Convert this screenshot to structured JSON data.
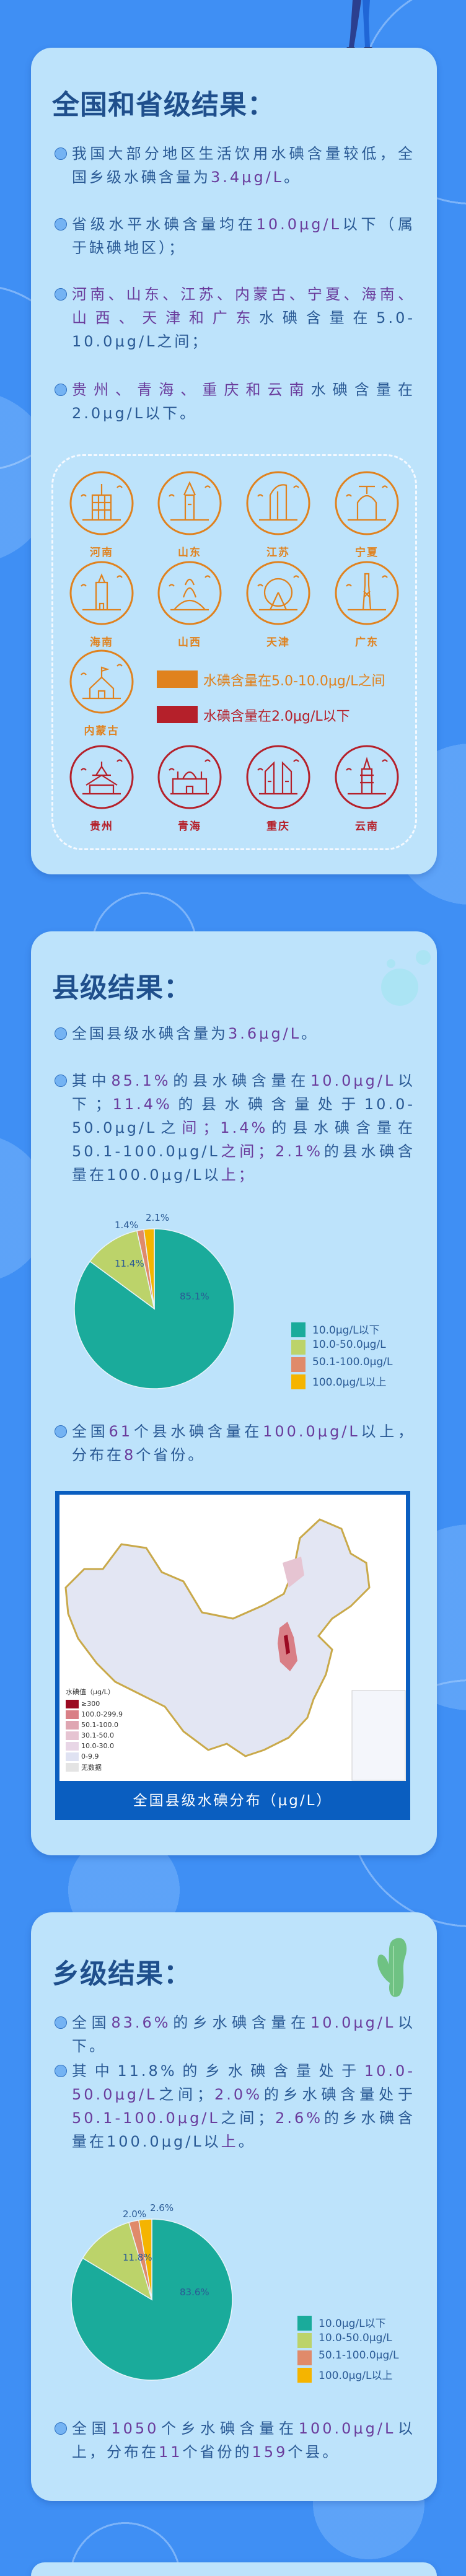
{
  "colors": {
    "background": "#3f8ff4",
    "card": "#bde3fb",
    "title": "#1f4f8c",
    "text": "#2a5a95",
    "highlight": "#6a3c9c",
    "orange": "#e0821e",
    "red": "#b5202a"
  },
  "national": {
    "title": "全国和省级结果：",
    "bullets": [
      [
        {
          "t": "我国大部分地区生活饮用水碘含量较低，全国乡级水碘含量为"
        },
        {
          "t": "3.4μg/L",
          "h": true
        },
        {
          "t": "。"
        }
      ],
      [
        {
          "t": "省级水平水碘含量均在"
        },
        {
          "t": "10.0μg/L",
          "h": true
        },
        {
          "t": "以下（属于缺碘地区）；"
        }
      ],
      [
        {
          "t": "河南、山东、江苏、内蒙古、宁夏、海南、山西、天津和广东",
          "h": true
        },
        {
          "t": "水碘含量在5.0-10.0μg/L之间；"
        }
      ],
      [
        {
          "t": "贵州、青海、重庆和云南",
          "h": true
        },
        {
          "t": "水碘含量在2.0μg/L以下。"
        }
      ]
    ],
    "orange_provinces": [
      {
        "name": "河南",
        "icon": "henan-landmark-icon"
      },
      {
        "name": "山东",
        "icon": "shandong-landmark-icon"
      },
      {
        "name": "江苏",
        "icon": "jiangsu-landmark-icon"
      },
      {
        "name": "宁夏",
        "icon": "ningxia-landmark-icon"
      },
      {
        "name": "海南",
        "icon": "hainan-landmark-icon"
      },
      {
        "name": "山西",
        "icon": "shanxi-buddha-icon"
      },
      {
        "name": "天津",
        "icon": "tianjin-ferris-wheel-icon"
      },
      {
        "name": "广东",
        "icon": "guangdong-canton-tower-icon"
      },
      {
        "name": "内蒙古",
        "icon": "neimenggu-yurt-icon"
      }
    ],
    "red_provinces": [
      {
        "name": "贵州",
        "icon": "guizhou-pavilion-icon"
      },
      {
        "name": "青海",
        "icon": "qinghai-mosque-icon"
      },
      {
        "name": "重庆",
        "icon": "chongqing-building-icon"
      },
      {
        "name": "云南",
        "icon": "yunnan-pagoda-icon"
      }
    ],
    "legend": {
      "orange": "水碘含量在5.0-10.0μg/L之间",
      "red": "水碘含量在2.0μg/L以下"
    }
  },
  "county": {
    "title": "县级结果：",
    "bullets": [
      [
        {
          "t": "全国县级水碘含量为"
        },
        {
          "t": "3.6μg/L",
          "h": true
        },
        {
          "t": "。"
        }
      ],
      [
        {
          "t": "其中"
        },
        {
          "t": "85.1%",
          "h": true
        },
        {
          "t": "的县水碘含量在"
        },
        {
          "t": "10.0μg/L",
          "h": true
        },
        {
          "t": "以下；"
        },
        {
          "t": "11.4%",
          "h": true
        },
        {
          "t": "的县水碘含量处于10.0-50.0μg/L之"
        },
        {
          "t": "间；",
          "h": true
        },
        {
          "t": "1.4%",
          "h": true
        },
        {
          "t": "的县水碘含量在50.1-100.0μg/L"
        },
        {
          "t": "之间；",
          "h": true
        },
        {
          "t": "2.1%",
          "h": true
        },
        {
          "t": "的县水碘含量在100.0μg/L以"
        },
        {
          "t": "上；",
          "h": true
        }
      ],
      [
        {
          "t": "全国"
        },
        {
          "t": "61",
          "h": true
        },
        {
          "t": "个县水碘含量在"
        },
        {
          "t": "100.0μg/L",
          "h": true
        },
        {
          "t": "以上，分布在"
        },
        {
          "t": "8",
          "h": true
        },
        {
          "t": "个省份。"
        }
      ]
    ],
    "map": {
      "caption": "全国县级水碘分布（μg/L）",
      "legend_title": "水碘值（μg/L）",
      "legend": [
        {
          "label": "≥300",
          "color": "#9b0a22"
        },
        {
          "label": "100.0-299.9",
          "color": "#d97f86"
        },
        {
          "label": "50.1-100.0",
          "color": "#dfa6b2"
        },
        {
          "label": "30.1-50.0",
          "color": "#e6c4d2"
        },
        {
          "label": "10.0-30.0",
          "color": "#e8d6e6"
        },
        {
          "label": "0-9.9",
          "color": "#dfe2f2"
        },
        {
          "label": "无数据",
          "color": "#e4e4e4"
        }
      ]
    }
  },
  "township": {
    "title": "乡级结果：",
    "bullets": [
      [
        {
          "t": "全国"
        },
        {
          "t": "83.6%",
          "h": true
        },
        {
          "t": "的乡水碘含量在"
        },
        {
          "t": "10.0μg/L",
          "h": true
        },
        {
          "t": "以下。"
        }
      ],
      [
        {
          "t": "其中11.8%的乡水碘含量处于"
        },
        {
          "t": "10.0-50.0μg/L",
          "h": true
        },
        {
          "t": "之间；"
        },
        {
          "t": "2.0%",
          "h": true
        },
        {
          "t": "的乡水碘含量处于"
        },
        {
          "t": "50.1-100.0μg/L",
          "h": true
        },
        {
          "t": "之间；"
        },
        {
          "t": "2.6%",
          "h": true
        },
        {
          "t": "的乡水碘含量在100.0μg/L以"
        },
        {
          "t": "上",
          "h": true
        },
        {
          "t": "。"
        }
      ],
      [
        {
          "t": "全国"
        },
        {
          "t": "1050",
          "h": true
        },
        {
          "t": "个乡水碘含量在"
        },
        {
          "t": "100.0μg/L",
          "h": true
        },
        {
          "t": "以上，分布在"
        },
        {
          "t": "11",
          "h": true
        },
        {
          "t": "个省份的"
        },
        {
          "t": "159",
          "h": true
        },
        {
          "t": "个县。"
        }
      ]
    ]
  },
  "chart_data": [
    {
      "type": "pie",
      "categories": [
        "10.0μg/L以下",
        "10.0-50.0μg/L",
        "50.1-100.0μg/L",
        "100.0μg/L以上"
      ],
      "values": [
        85.1,
        11.4,
        1.4,
        2.1
      ],
      "labels": [
        "85.1%",
        "11.4%",
        "1.4%",
        "2.1%"
      ],
      "colors": [
        "#1aab9b",
        "#bcd36a",
        "#e08a6a",
        "#f5b400"
      ],
      "legend": "right"
    },
    {
      "type": "pie",
      "categories": [
        "10.0μg/L以下",
        "10.0-50.0μg/L",
        "50.1-100.0μg/L",
        "100.0μg/L以上"
      ],
      "values": [
        83.6,
        11.8,
        2.0,
        2.6
      ],
      "labels": [
        "83.6%",
        "11.8%",
        "2.0%",
        "2.6%"
      ],
      "colors": [
        "#1aab9b",
        "#bcd36a",
        "#e08a6a",
        "#f5b400"
      ],
      "legend": "right"
    }
  ]
}
